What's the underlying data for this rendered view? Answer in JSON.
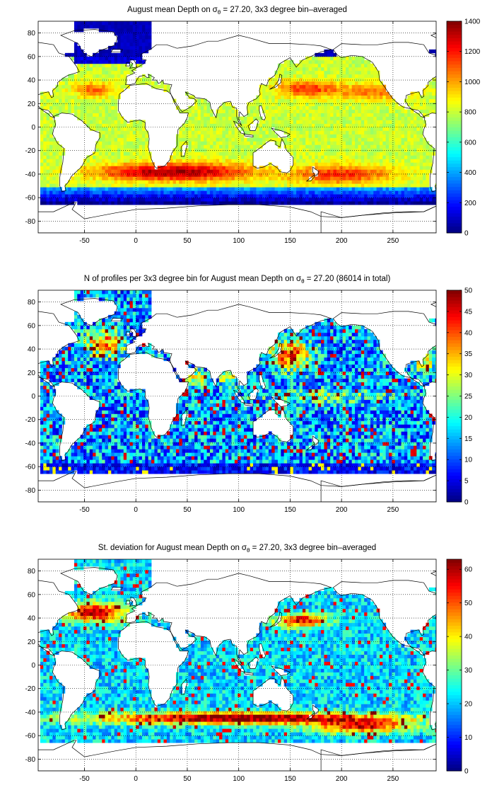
{
  "chart_data": [
    {
      "type": "heatmap",
      "title": "August mean Depth on",
      "title_sigma": "σ",
      "title_sub": "θ",
      "title_rest": " = 27.20, 3x3 degree bin–averaged",
      "xlim": [
        -95,
        292
      ],
      "ylim": [
        -90,
        90
      ],
      "xticks": [
        -50,
        0,
        50,
        100,
        150,
        200,
        250
      ],
      "yticks": [
        -80,
        -60,
        -40,
        -20,
        0,
        20,
        40,
        60,
        80
      ],
      "grid": true,
      "colorbar": {
        "min": 0,
        "max": 1400,
        "ticks": [
          0,
          200,
          400,
          600,
          800,
          1000,
          1200,
          1400
        ],
        "colormap": "jet"
      },
      "field": "depth"
    },
    {
      "type": "heatmap",
      "title": "N of profiles per 3x3 degree bin for August mean Depth on",
      "title_sigma": "σ",
      "title_sub": "θ",
      "title_rest": " = 27.20 (86014 in total)",
      "xlim": [
        -95,
        292
      ],
      "ylim": [
        -90,
        90
      ],
      "xticks": [
        -50,
        0,
        50,
        100,
        150,
        200,
        250
      ],
      "yticks": [
        -80,
        -60,
        -40,
        -20,
        0,
        20,
        40,
        60,
        80
      ],
      "grid": true,
      "colorbar": {
        "min": 0,
        "max": 50,
        "ticks": [
          0,
          5,
          10,
          15,
          20,
          25,
          30,
          35,
          40,
          45,
          50
        ],
        "colormap": "jet"
      },
      "field": "count"
    },
    {
      "type": "heatmap",
      "title": "St. deviation for August mean Depth on",
      "title_sigma": "σ",
      "title_sub": "θ",
      "title_rest": " = 27.20, 3x3 degree bin–averaged",
      "xlim": [
        -95,
        292
      ],
      "ylim": [
        -90,
        90
      ],
      "xticks": [
        -50,
        0,
        50,
        100,
        150,
        200,
        250
      ],
      "yticks": [
        -80,
        -60,
        -40,
        -20,
        0,
        20,
        40,
        60,
        80
      ],
      "grid": true,
      "colorbar": {
        "min": 0,
        "max": 63,
        "ticks": [
          0,
          10,
          20,
          30,
          40,
          50,
          60
        ],
        "colormap": "jet"
      },
      "field": "std"
    }
  ]
}
